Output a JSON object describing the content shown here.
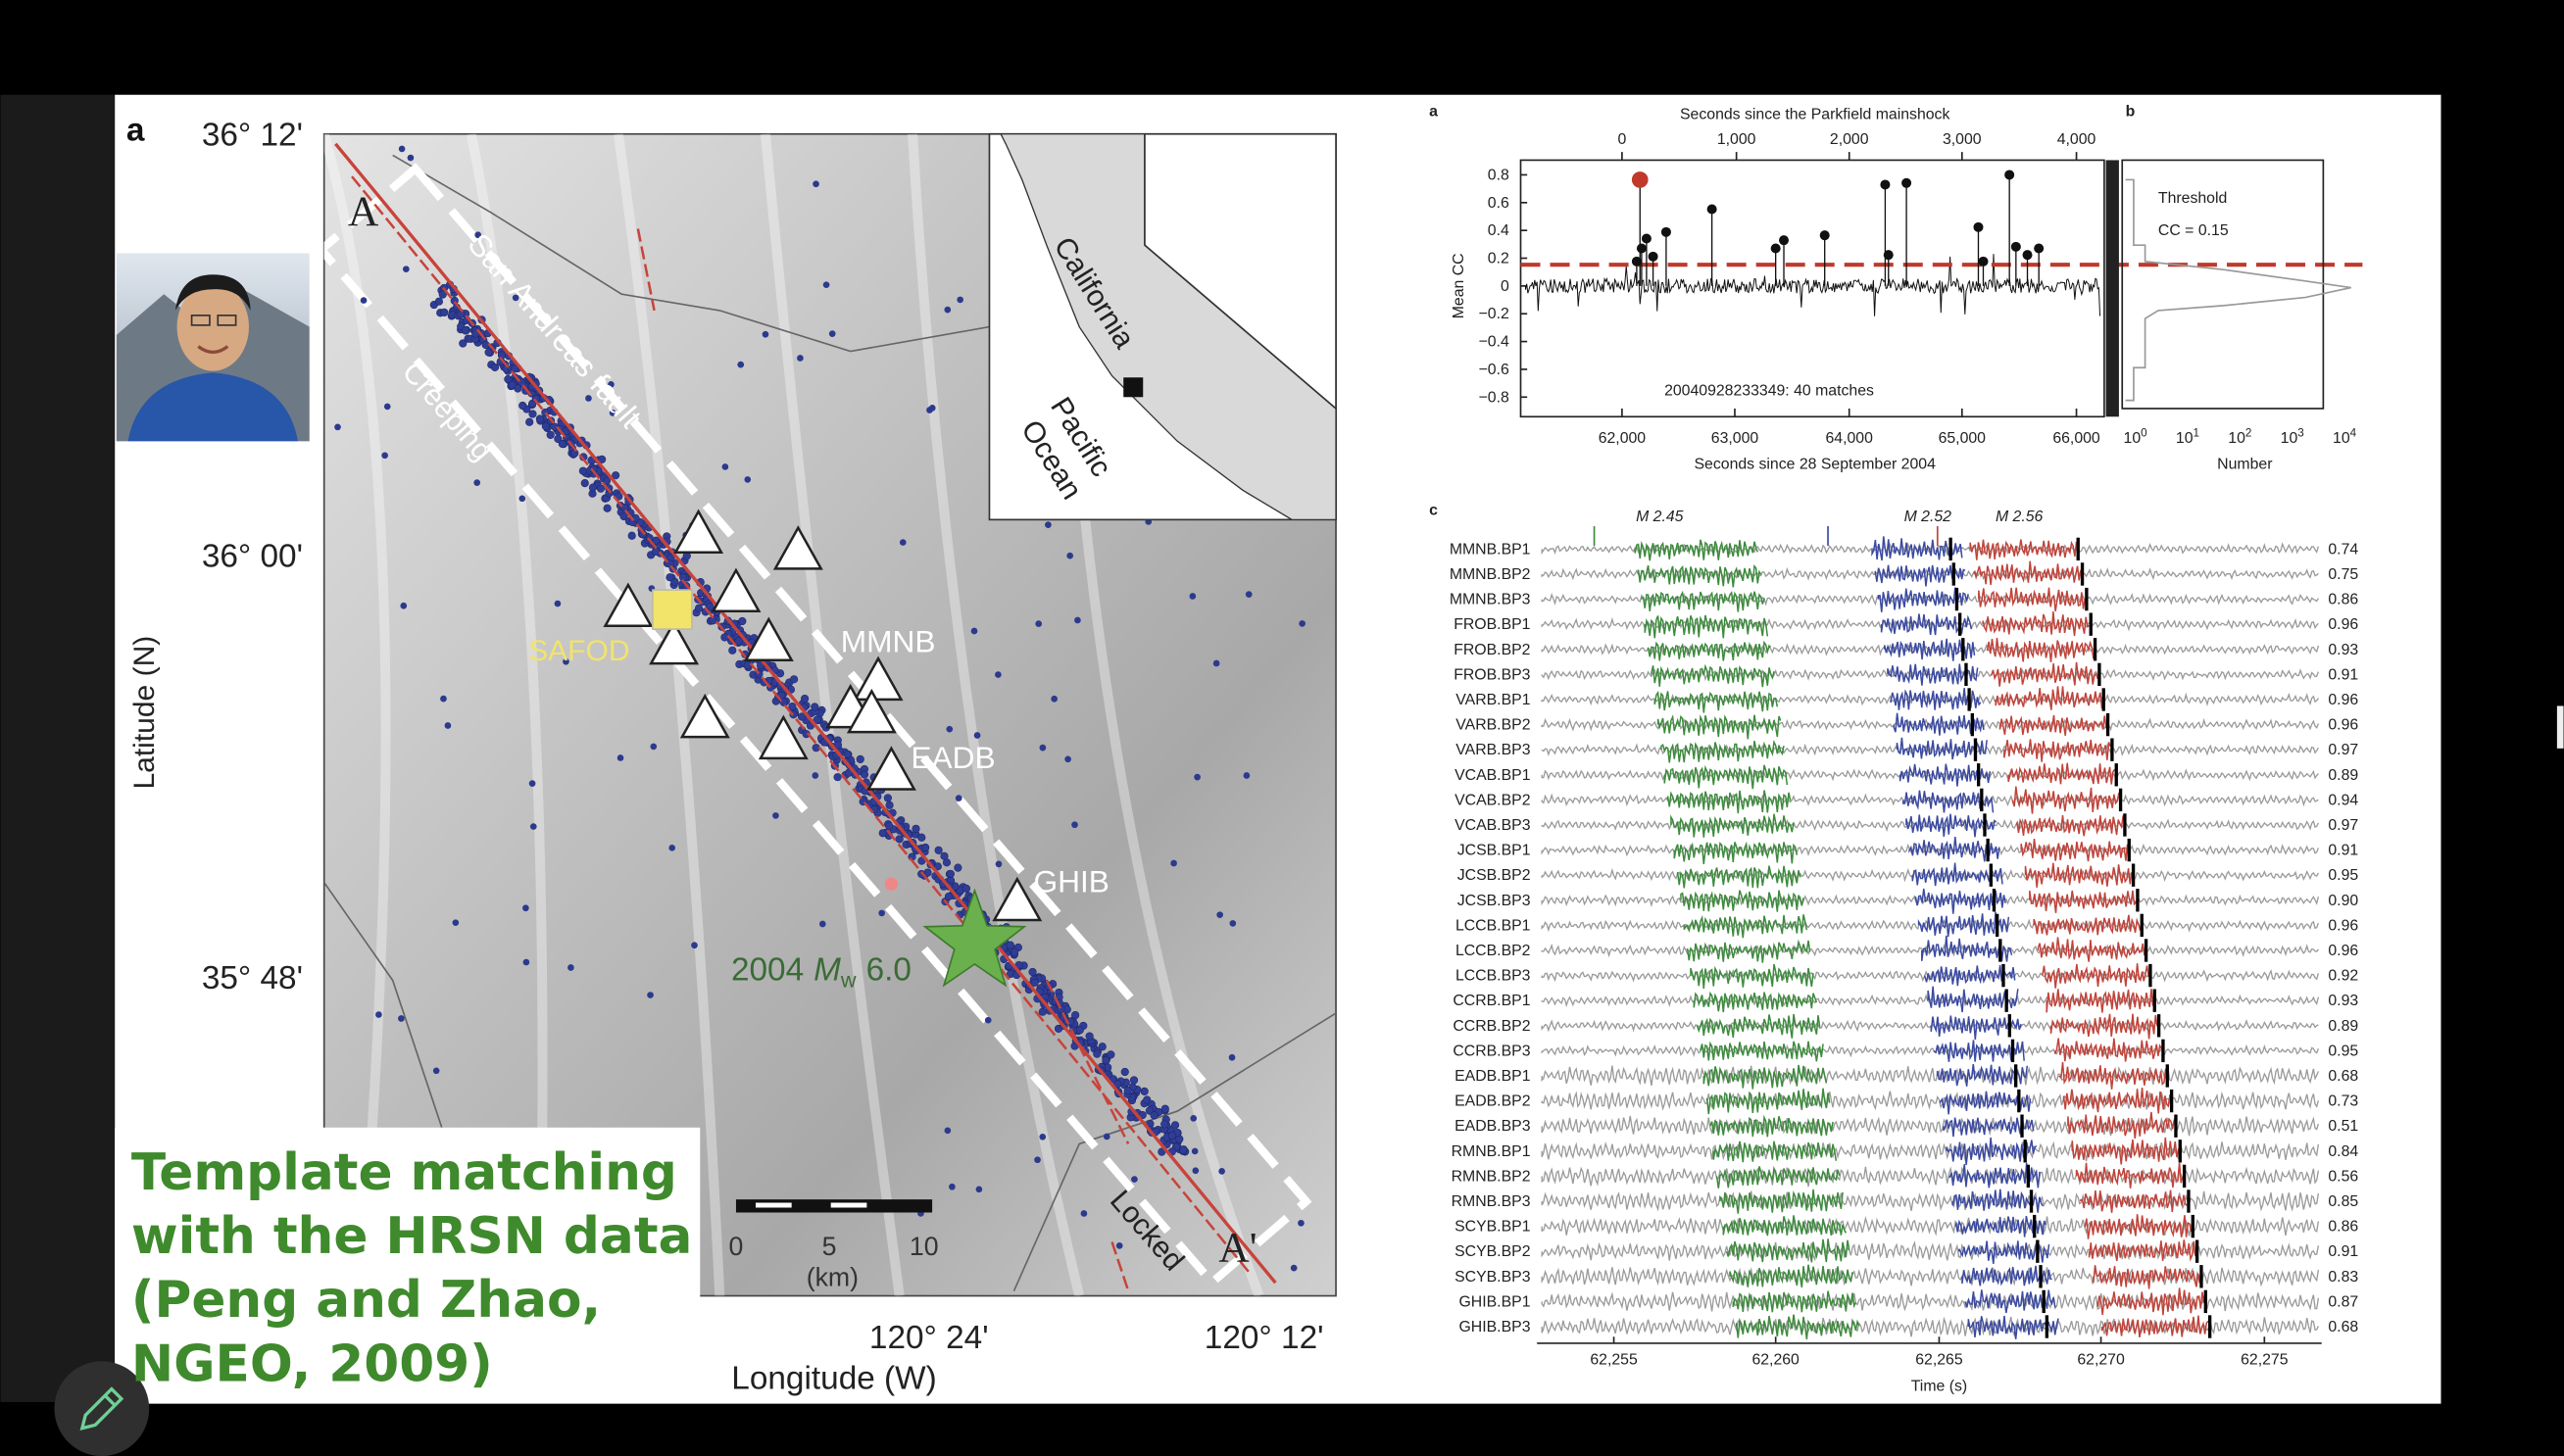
{
  "slide": {
    "map": {
      "panel_label": "a",
      "lat_ticks": [
        "36° 12'",
        "36° 00'",
        "35° 48'"
      ],
      "lon_ticks": [
        "120° 24'",
        "120° 12'"
      ],
      "y_label": "Latitude (N)",
      "x_label": "Longitude (W)",
      "profile_start": "A",
      "profile_end": "A'",
      "fault": "San Andreas fault",
      "creeping": "Creeping",
      "locked": "Locked",
      "safod": "SAFOD",
      "stations": [
        "MMNB",
        "EADB",
        "GHIB"
      ],
      "mainshock": {
        "year": "2004",
        "m": "M",
        "sub": "w",
        "mag": "6.0"
      },
      "inset": {
        "state": "California",
        "ocean": [
          "Pacific",
          "Ocean"
        ]
      },
      "scale": {
        "ticks": [
          "0",
          "5",
          "10"
        ],
        "unit": "(km)"
      }
    },
    "caption": [
      "Template matching",
      "with the HRSN data",
      "(Peng and Zhao,",
      "NGEO, 2009)"
    ],
    "figure": {
      "a": {
        "label": "a",
        "top_axis": "Seconds since the Parkfield mainshock",
        "top_ticks": [
          "0",
          "1,000",
          "2,000",
          "3,000",
          "4,000"
        ],
        "y_axis": "Mean CC",
        "y_ticks": [
          "0.8",
          "0.6",
          "0.4",
          "0.2",
          "0",
          "−0.2",
          "−0.4",
          "−0.6",
          "−0.8"
        ],
        "x_axis": "Seconds since 28 September 2004",
        "x_ticks": [
          "62,000",
          "63,000",
          "64,000",
          "65,000",
          "66,000"
        ],
        "annotation": "20040928233349: 40 matches"
      },
      "b": {
        "label": "b",
        "threshold": "Threshold",
        "cc": "CC = 0.15",
        "x_axis": "Number",
        "x_ticks": [
          [
            "10",
            "0"
          ],
          [
            "10",
            "1"
          ],
          [
            "10",
            "2"
          ],
          [
            "10",
            "3"
          ],
          [
            "10",
            "4"
          ]
        ]
      },
      "c": {
        "label": "c",
        "magnitudes": [
          "M 2.45",
          "M 2.52",
          "M 2.56"
        ],
        "stations": [
          "MMNB.BP1",
          "MMNB.BP2",
          "MMNB.BP3",
          "FROB.BP1",
          "FROB.BP2",
          "FROB.BP3",
          "VARB.BP1",
          "VARB.BP2",
          "VARB.BP3",
          "VCAB.BP1",
          "VCAB.BP2",
          "VCAB.BP3",
          "JCSB.BP1",
          "JCSB.BP2",
          "JCSB.BP3",
          "LCCB.BP1",
          "LCCB.BP2",
          "LCCB.BP3",
          "CCRB.BP1",
          "CCRB.BP2",
          "CCRB.BP3",
          "EADB.BP1",
          "EADB.BP2",
          "EADB.BP3",
          "RMNB.BP1",
          "RMNB.BP2",
          "RMNB.BP3",
          "SCYB.BP1",
          "SCYB.BP2",
          "SCYB.BP3",
          "GHIB.BP1",
          "GHIB.BP3"
        ],
        "cc": [
          "0.74",
          "0.75",
          "0.86",
          "0.96",
          "0.93",
          "0.91",
          "0.96",
          "0.96",
          "0.97",
          "0.89",
          "0.94",
          "0.97",
          "0.91",
          "0.95",
          "0.90",
          "0.96",
          "0.96",
          "0.92",
          "0.93",
          "0.89",
          "0.95",
          "0.68",
          "0.73",
          "0.51",
          "0.84",
          "0.56",
          "0.85",
          "0.86",
          "0.91",
          "0.83",
          "0.87",
          "0.68"
        ],
        "x_ticks": [
          "62,255",
          "62,260",
          "62,265",
          "62,270",
          "62,275"
        ],
        "x_axis": "Time (s)"
      }
    }
  }
}
